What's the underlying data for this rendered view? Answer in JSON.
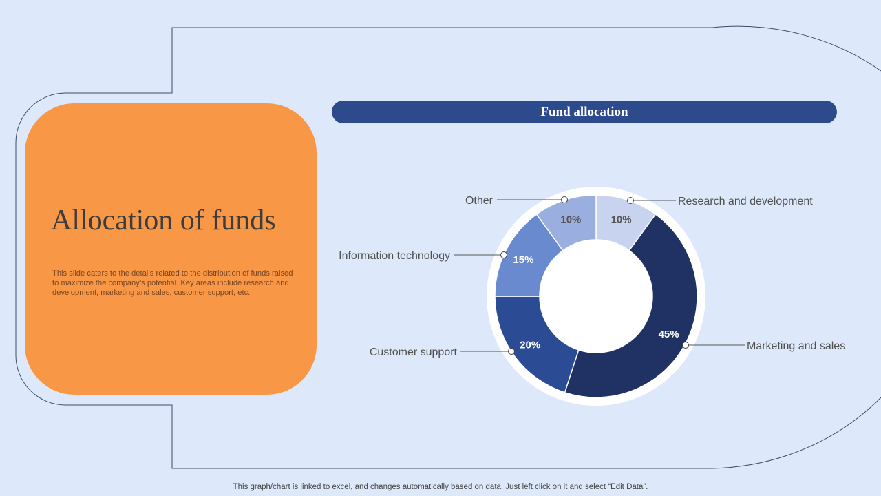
{
  "slide": {
    "title": "Allocation of funds",
    "description": "This slide caters to the details related to the distribution of funds raised to maximize the company’s potential. Key areas include research and development, marketing and sales, customer support, etc.",
    "footer": "This graph/chart is linked to excel,  and changes automatically based on data. Just left click on it and select “Edit Data”."
  },
  "colors": {
    "background": "#dde9fb",
    "card": "#f89745",
    "header": "#2c4a8c"
  },
  "chart_data": {
    "type": "pie",
    "donut": true,
    "title": "Fund allocation",
    "categories": [
      "Research and development",
      "Marketing and sales",
      "Customer support",
      "Information technology",
      "Other"
    ],
    "values": [
      10,
      45,
      20,
      15,
      10
    ],
    "labels": [
      "10%",
      "45%",
      "20%",
      "15%",
      "10%"
    ],
    "colors": [
      "#c8d4ef",
      "#1f3263",
      "#2b4b94",
      "#6a8acf",
      "#9aaee0"
    ],
    "label_colors": [
      "#555555",
      "#ffffff",
      "#ffffff",
      "#ffffff",
      "#555555"
    ]
  }
}
